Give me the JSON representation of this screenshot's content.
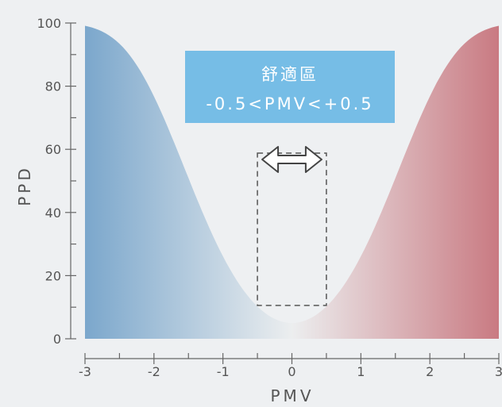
{
  "chart_data": {
    "type": "area",
    "xlabel": "PMV",
    "ylabel": "PPD",
    "xlim": [
      -3,
      3
    ],
    "ylim": [
      0,
      100
    ],
    "x_ticks": [
      "-3",
      "-2",
      "-1",
      "0",
      "1",
      "2",
      "3"
    ],
    "y_ticks": [
      "0",
      "20",
      "40",
      "60",
      "80",
      "100"
    ],
    "series": [
      {
        "x": [
          -3,
          -2.5,
          -2,
          -1.5,
          -1,
          -0.5,
          0,
          0.5,
          1,
          1.5,
          2,
          2.5,
          3
        ],
        "values": [
          99.1,
          93.5,
          76.8,
          51.5,
          26.1,
          10.2,
          5.0,
          10.2,
          26.1,
          51.5,
          76.8,
          93.5,
          99.1
        ]
      }
    ],
    "annotation": {
      "line1": "舒適區",
      "line2": "-0.5<PMV<+0.5",
      "zone_x": [
        -0.5,
        0.5
      ]
    },
    "colors": {
      "cold": "#7ba7cc",
      "neutral": "#eceeef",
      "warm": "#c97a82",
      "banner": "#76bde6",
      "axis": "#666666"
    }
  }
}
